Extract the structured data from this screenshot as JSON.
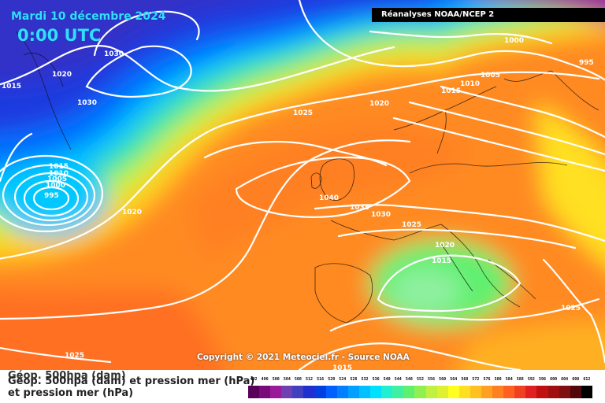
{
  "header": {
    "date": "Mardi 10 décembre 2024",
    "time": "0:00 UTC",
    "source": "Réanalyses NOAA/NCEP 2"
  },
  "copyright": "Copyright © 2021 Meteociel.fr - Source NOAA",
  "caption": {
    "line1": "Géop. 500hpa (dam)",
    "line1b": "Géop. 500hpa (dam) et pression mer (hPa)",
    "line2": "et pression mer (hPa)"
  },
  "isobar_labels": [
    "1030",
    "1020",
    "1015",
    "1030",
    "1015",
    "1010",
    "1005",
    "1000",
    "995",
    "1020",
    "1025",
    "1020",
    "1010",
    "1005",
    "1015",
    "1000",
    "995",
    "1040",
    "1035",
    "1030",
    "1025",
    "1020",
    "1015",
    "1025",
    "1025",
    "1015"
  ],
  "color_scale": {
    "ticks": [
      "492",
      "496",
      "500",
      "504",
      "508",
      "512",
      "516",
      "520",
      "524",
      "528",
      "532",
      "536",
      "540",
      "544",
      "548",
      "552",
      "556",
      "560",
      "564",
      "568",
      "572",
      "576",
      "580",
      "584",
      "588",
      "592",
      "596",
      "600",
      "604",
      "608",
      "612"
    ],
    "colors": [
      "#5a005a",
      "#7a0a7a",
      "#9a1a9a",
      "#7040b0",
      "#4040c0",
      "#2030d0",
      "#0040e0",
      "#0060ff",
      "#0080ff",
      "#00a0ff",
      "#00c0ff",
      "#00e0ff",
      "#20f0d0",
      "#40f0a0",
      "#60f070",
      "#90f050",
      "#c0f040",
      "#e0f030",
      "#ffff20",
      "#ffe020",
      "#ffc020",
      "#ffa020",
      "#ff8020",
      "#ff6020",
      "#f04020",
      "#e02020",
      "#c01010",
      "#a01010",
      "#801010",
      "#500808",
      "#000000"
    ]
  }
}
